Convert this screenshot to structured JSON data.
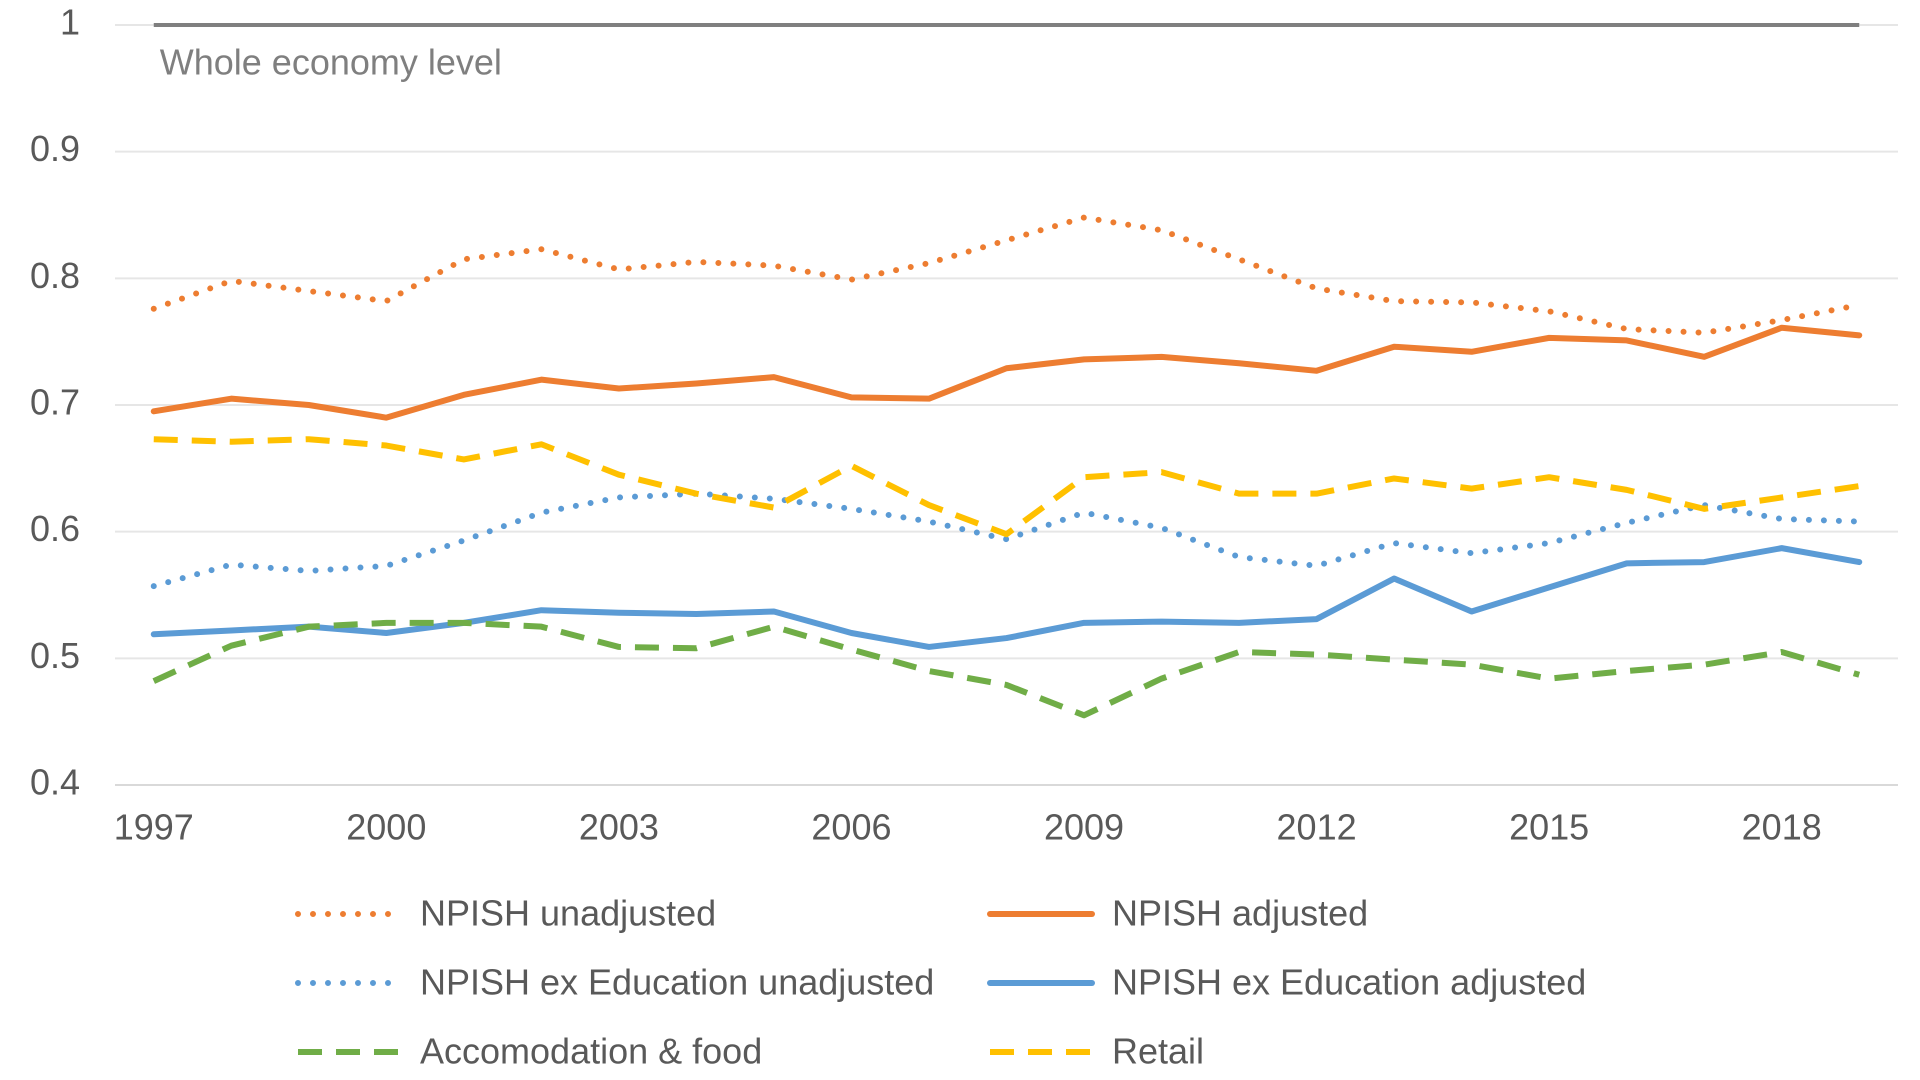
{
  "chart_data": {
    "type": "line",
    "x": [
      1997,
      1998,
      1999,
      2000,
      2001,
      2002,
      2003,
      2004,
      2005,
      2006,
      2007,
      2008,
      2009,
      2010,
      2011,
      2012,
      2013,
      2014,
      2015,
      2016,
      2017,
      2018,
      2019
    ],
    "xlim": [
      1996.5,
      2019.5
    ],
    "xticks": [
      1997,
      2000,
      2003,
      2006,
      2009,
      2012,
      2015,
      2018
    ],
    "ylim": [
      0.4,
      1
    ],
    "yticks": [
      0.4,
      0.5,
      0.6,
      0.7,
      0.8,
      0.9,
      1
    ],
    "grid": true,
    "reference_line": {
      "value": 1,
      "label": "Whole economy level",
      "color": "#7f7f7f"
    },
    "legend_position": "bottom",
    "series": [
      {
        "name": "NPISH unadjusted",
        "color": "#ed7d31",
        "dash": "dot",
        "values": [
          0.776,
          0.798,
          0.79,
          0.782,
          0.815,
          0.823,
          0.807,
          0.813,
          0.81,
          0.799,
          0.812,
          0.83,
          0.848,
          0.838,
          0.815,
          0.792,
          0.782,
          0.781,
          0.774,
          0.76,
          0.757,
          0.767,
          0.779
        ]
      },
      {
        "name": "NPISH adjusted",
        "color": "#ed7d31",
        "dash": "solid",
        "values": [
          0.695,
          0.705,
          0.7,
          0.69,
          0.708,
          0.72,
          0.713,
          0.717,
          0.722,
          0.706,
          0.705,
          0.729,
          0.736,
          0.738,
          0.733,
          0.727,
          0.746,
          0.742,
          0.753,
          0.751,
          0.738,
          0.761,
          0.755
        ]
      },
      {
        "name": "NPISH ex Education unadjusted",
        "color": "#5b9bd5",
        "dash": "dot",
        "values": [
          0.557,
          0.574,
          0.569,
          0.573,
          0.593,
          0.615,
          0.627,
          0.63,
          0.626,
          0.618,
          0.608,
          0.594,
          0.615,
          0.603,
          0.58,
          0.573,
          0.591,
          0.583,
          0.591,
          0.607,
          0.621,
          0.61,
          0.608
        ]
      },
      {
        "name": "NPISH ex Education adjusted",
        "color": "#5b9bd5",
        "dash": "solid",
        "values": [
          0.519,
          0.522,
          0.525,
          0.52,
          0.528,
          0.538,
          0.536,
          0.535,
          0.537,
          0.52,
          0.509,
          0.516,
          0.528,
          0.529,
          0.528,
          0.531,
          0.563,
          0.537,
          0.556,
          0.575,
          0.576,
          0.587,
          0.576
        ]
      },
      {
        "name": "Accomodation & food",
        "color": "#70ad47",
        "dash": "dash",
        "values": [
          0.482,
          0.51,
          0.525,
          0.528,
          0.528,
          0.525,
          0.509,
          0.508,
          0.525,
          0.507,
          0.49,
          0.479,
          0.455,
          0.484,
          0.505,
          0.503,
          0.499,
          0.495,
          0.484,
          0.49,
          0.495,
          0.505,
          0.487
        ]
      },
      {
        "name": "Retail",
        "color": "#ffc000",
        "dash": "dash",
        "values": [
          0.673,
          0.671,
          0.673,
          0.668,
          0.657,
          0.669,
          0.645,
          0.63,
          0.619,
          0.652,
          0.621,
          0.598,
          0.643,
          0.647,
          0.63,
          0.63,
          0.642,
          0.634,
          0.643,
          0.633,
          0.618,
          0.627,
          0.636
        ]
      }
    ]
  }
}
